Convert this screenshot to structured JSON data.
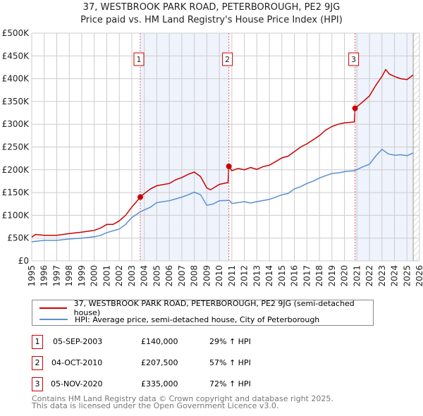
{
  "header": {
    "title": "37, WESTBROOK PARK ROAD, PETERBOROUGH, PE2 9JG",
    "subtitle": "Price paid vs. HM Land Registry's House Price Index (HPI)"
  },
  "chart_data": {
    "type": "line",
    "xlim": [
      1995,
      2026
    ],
    "ylim": [
      0,
      500000
    ],
    "y_ticks": [
      {
        "v": 0,
        "label": "£0"
      },
      {
        "v": 50000,
        "label": "£50K"
      },
      {
        "v": 100000,
        "label": "£100K"
      },
      {
        "v": 150000,
        "label": "£150K"
      },
      {
        "v": 200000,
        "label": "£200K"
      },
      {
        "v": 250000,
        "label": "£250K"
      },
      {
        "v": 300000,
        "label": "£300K"
      },
      {
        "v": 350000,
        "label": "£350K"
      },
      {
        "v": 400000,
        "label": "£400K"
      },
      {
        "v": 450000,
        "label": "£450K"
      },
      {
        "v": 500000,
        "label": "£500K"
      }
    ],
    "x_ticks": [
      "1995",
      "1996",
      "1997",
      "1998",
      "1999",
      "2000",
      "2001",
      "2002",
      "2003",
      "2004",
      "2005",
      "2006",
      "2007",
      "2008",
      "2009",
      "2010",
      "2011",
      "2012",
      "2013",
      "2014",
      "2015",
      "2016",
      "2017",
      "2018",
      "2019",
      "2020",
      "2021",
      "2022",
      "2023",
      "2024",
      "2025",
      "2026"
    ],
    "grid": true,
    "shaded_ranges": [
      [
        2003.68,
        2010.76
      ],
      [
        2020.85,
        2025.5
      ]
    ],
    "future_hatch_from": 2025.5,
    "series": [
      {
        "name": "37, WESTBROOK PARK ROAD, PETERBOROUGH, PE2 9JG (semi-detached house)",
        "color": "#cc0000",
        "x": [
          1995,
          1995.3,
          1996,
          1997,
          1998,
          1999,
          2000,
          2000.5,
          2001,
          2001.5,
          2002,
          2002.5,
          2003,
          2003.68,
          2004,
          2004.5,
          2005,
          2006,
          2006.5,
          2007,
          2007.5,
          2008,
          2008.5,
          2009,
          2009.3,
          2010,
          2010.7,
          2010.76,
          2011,
          2011.5,
          2012,
          2012.5,
          2013,
          2013.5,
          2014,
          2014.5,
          2015,
          2015.5,
          2016,
          2016.5,
          2017,
          2017.5,
          2018,
          2018.5,
          2019,
          2019.5,
          2020,
          2020.8,
          2020.85,
          2021.5,
          2022,
          2022.5,
          2023,
          2023.3,
          2023.6,
          2024,
          2024.5,
          2025,
          2025.5
        ],
        "y": [
          52000,
          58000,
          56000,
          56000,
          60000,
          63000,
          67000,
          72000,
          80000,
          80000,
          88000,
          100000,
          118000,
          140000,
          148000,
          158000,
          165000,
          170000,
          178000,
          183000,
          190000,
          195000,
          185000,
          160000,
          156000,
          168000,
          172000,
          207500,
          198000,
          203000,
          200000,
          205000,
          201000,
          207000,
          210000,
          218000,
          226000,
          230000,
          240000,
          250000,
          257000,
          266000,
          275000,
          287000,
          295000,
          300000,
          303000,
          305000,
          335000,
          350000,
          362000,
          385000,
          405000,
          420000,
          410000,
          405000,
          400000,
          398000,
          408000
        ]
      },
      {
        "name": "HPI: Average price, semi-detached house, City of Peterborough",
        "color": "#5b8fd0",
        "x": [
          1995,
          1996,
          1997,
          1998,
          1999,
          2000,
          2000.5,
          2001,
          2002,
          2002.5,
          2003,
          2003.7,
          2004.5,
          2005,
          2006,
          2007,
          2007.5,
          2008,
          2008.5,
          2009,
          2009.5,
          2010,
          2010.8,
          2011,
          2012,
          2012.5,
          2013,
          2014,
          2014.5,
          2015,
          2015.5,
          2016,
          2016.5,
          2017,
          2017.5,
          2018,
          2018.5,
          2019,
          2019.5,
          2020,
          2020.8,
          2021.5,
          2022,
          2022.5,
          2023,
          2023.5,
          2024,
          2024.5,
          2025,
          2025.5
        ],
        "y": [
          42000,
          45000,
          45000,
          48000,
          50000,
          53000,
          56000,
          62000,
          70000,
          80000,
          95000,
          108000,
          118000,
          128000,
          132000,
          140000,
          145000,
          151000,
          145000,
          122000,
          125000,
          132000,
          133000,
          126000,
          130000,
          127000,
          130000,
          135000,
          140000,
          145000,
          148000,
          158000,
          163000,
          170000,
          175000,
          182000,
          187000,
          192000,
          193000,
          196000,
          198000,
          207000,
          212000,
          230000,
          245000,
          235000,
          232000,
          233000,
          231000,
          237000
        ]
      }
    ],
    "sales": [
      {
        "label": "1",
        "x": 2003.68,
        "y": 140000
      },
      {
        "label": "2",
        "x": 2010.76,
        "y": 207500
      },
      {
        "label": "3",
        "x": 2020.85,
        "y": 335000
      }
    ]
  },
  "legend": {
    "property": "37, WESTBROOK PARK ROAD, PETERBOROUGH, PE2 9JG (semi-detached house)",
    "hpi": "HPI: Average price, semi-detached house, City of Peterborough"
  },
  "transactions": [
    {
      "num": "1",
      "date": "05-SEP-2003",
      "price": "£140,000",
      "hpi": "29% ↑ HPI"
    },
    {
      "num": "2",
      "date": "04-OCT-2010",
      "price": "£207,500",
      "hpi": "57% ↑ HPI"
    },
    {
      "num": "3",
      "date": "05-NOV-2020",
      "price": "£335,000",
      "hpi": "72% ↑ HPI"
    }
  ],
  "footer": {
    "line1": "Contains HM Land Registry data © Crown copyright and database right 2025.",
    "line2": "This data is licensed under the Open Government Licence v3.0."
  }
}
